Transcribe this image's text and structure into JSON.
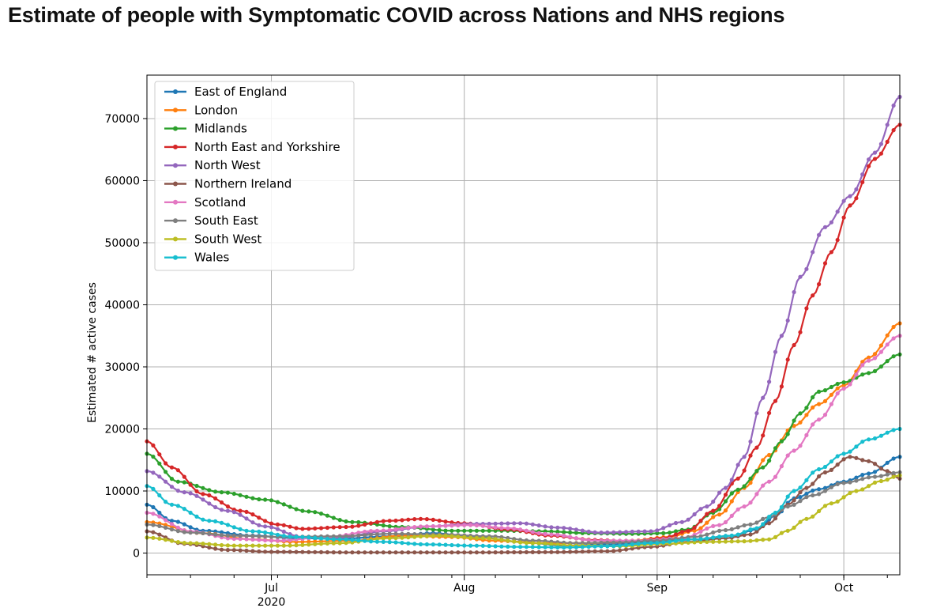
{
  "title": "Estimate of people with Symptomatic COVID across Nations and NHS regions",
  "chart_data": {
    "type": "line",
    "title": "Estimate of people with Symptomatic COVID across Nations and NHS regions",
    "xlabel": "",
    "ylabel": "Estimated # active cases",
    "x_start": "2020-06-11",
    "x_end": "2020-10-10",
    "xlim": [
      "2020-06-11",
      "2020-10-10"
    ],
    "ylim": [
      -3500,
      77000
    ],
    "x_ticks": [
      {
        "date": "2020-07-01",
        "label": "Jul",
        "sublabel": "2020"
      },
      {
        "date": "2020-08-01",
        "label": "Aug",
        "sublabel": ""
      },
      {
        "date": "2020-09-01",
        "label": "Sep",
        "sublabel": ""
      },
      {
        "date": "2020-10-01",
        "label": "Oct",
        "sublabel": ""
      }
    ],
    "y_ticks": [
      0,
      10000,
      20000,
      30000,
      40000,
      50000,
      60000,
      70000
    ],
    "grid": true,
    "legend_position": "top-left",
    "series": [
      {
        "name": "East of England",
        "color": "#1f77b4",
        "points": [
          [
            "2020-06-11",
            7800
          ],
          [
            "2020-06-15",
            5200
          ],
          [
            "2020-06-20",
            3600
          ],
          [
            "2020-06-28",
            2800
          ],
          [
            "2020-07-05",
            2400
          ],
          [
            "2020-07-12",
            2300
          ],
          [
            "2020-07-20",
            2700
          ],
          [
            "2020-07-27",
            3200
          ],
          [
            "2020-08-03",
            2600
          ],
          [
            "2020-08-10",
            1800
          ],
          [
            "2020-08-17",
            1200
          ],
          [
            "2020-08-24",
            1400
          ],
          [
            "2020-08-31",
            1800
          ],
          [
            "2020-09-07",
            2200
          ],
          [
            "2020-09-13",
            2800
          ],
          [
            "2020-09-17",
            3800
          ],
          [
            "2020-09-20",
            6000
          ],
          [
            "2020-09-23",
            8800
          ],
          [
            "2020-09-27",
            10300
          ],
          [
            "2020-10-01",
            11500
          ],
          [
            "2020-10-05",
            12800
          ],
          [
            "2020-10-10",
            15500
          ]
        ]
      },
      {
        "name": "London",
        "color": "#ff7f0e",
        "points": [
          [
            "2020-06-11",
            5000
          ],
          [
            "2020-06-20",
            3200
          ],
          [
            "2020-06-28",
            2200
          ],
          [
            "2020-07-05",
            1800
          ],
          [
            "2020-07-14",
            2000
          ],
          [
            "2020-07-22",
            2800
          ],
          [
            "2020-07-30",
            2600
          ],
          [
            "2020-08-06",
            2000
          ],
          [
            "2020-08-14",
            1600
          ],
          [
            "2020-08-21",
            1600
          ],
          [
            "2020-08-28",
            2000
          ],
          [
            "2020-09-03",
            2600
          ],
          [
            "2020-09-07",
            3600
          ],
          [
            "2020-09-11",
            6200
          ],
          [
            "2020-09-15",
            10500
          ],
          [
            "2020-09-19",
            15800
          ],
          [
            "2020-09-23",
            20500
          ],
          [
            "2020-09-27",
            24000
          ],
          [
            "2020-10-01",
            27000
          ],
          [
            "2020-10-05",
            31500
          ],
          [
            "2020-10-10",
            37000
          ]
        ]
      },
      {
        "name": "Midlands",
        "color": "#2ca02c",
        "points": [
          [
            "2020-06-11",
            16000
          ],
          [
            "2020-06-16",
            11500
          ],
          [
            "2020-06-23",
            9800
          ],
          [
            "2020-06-30",
            8600
          ],
          [
            "2020-07-07",
            6700
          ],
          [
            "2020-07-14",
            5000
          ],
          [
            "2020-07-22",
            4200
          ],
          [
            "2020-07-30",
            3600
          ],
          [
            "2020-08-07",
            3600
          ],
          [
            "2020-08-14",
            3500
          ],
          [
            "2020-08-21",
            3200
          ],
          [
            "2020-08-28",
            3100
          ],
          [
            "2020-09-02",
            3200
          ],
          [
            "2020-09-06",
            3800
          ],
          [
            "2020-09-10",
            6500
          ],
          [
            "2020-09-14",
            10200
          ],
          [
            "2020-09-18",
            13800
          ],
          [
            "2020-09-21",
            18000
          ],
          [
            "2020-09-24",
            22500
          ],
          [
            "2020-09-27",
            26000
          ],
          [
            "2020-10-01",
            27500
          ],
          [
            "2020-10-05",
            29000
          ],
          [
            "2020-10-10",
            32000
          ]
        ]
      },
      {
        "name": "North East and Yorkshire",
        "color": "#d62728",
        "points": [
          [
            "2020-06-11",
            18000
          ],
          [
            "2020-06-15",
            13800
          ],
          [
            "2020-06-20",
            9500
          ],
          [
            "2020-06-26",
            6800
          ],
          [
            "2020-07-02",
            4600
          ],
          [
            "2020-07-06",
            3900
          ],
          [
            "2020-07-13",
            4200
          ],
          [
            "2020-07-20",
            5200
          ],
          [
            "2020-07-25",
            5500
          ],
          [
            "2020-08-01",
            4800
          ],
          [
            "2020-08-08",
            3800
          ],
          [
            "2020-08-15",
            2800
          ],
          [
            "2020-08-22",
            2100
          ],
          [
            "2020-08-28",
            1900
          ],
          [
            "2020-09-02",
            2400
          ],
          [
            "2020-09-06",
            3600
          ],
          [
            "2020-09-10",
            6800
          ],
          [
            "2020-09-14",
            12000
          ],
          [
            "2020-09-17",
            17000
          ],
          [
            "2020-09-20",
            24500
          ],
          [
            "2020-09-23",
            33500
          ],
          [
            "2020-09-26",
            41500
          ],
          [
            "2020-09-29",
            48500
          ],
          [
            "2020-10-02",
            56000
          ],
          [
            "2020-10-06",
            63500
          ],
          [
            "2020-10-10",
            69000
          ]
        ]
      },
      {
        "name": "North West",
        "color": "#9467bd",
        "points": [
          [
            "2020-06-11",
            13200
          ],
          [
            "2020-06-17",
            9800
          ],
          [
            "2020-06-24",
            6800
          ],
          [
            "2020-06-30",
            4300
          ],
          [
            "2020-07-06",
            2600
          ],
          [
            "2020-07-12",
            2500
          ],
          [
            "2020-07-19",
            3500
          ],
          [
            "2020-07-26",
            4300
          ],
          [
            "2020-08-03",
            4700
          ],
          [
            "2020-08-10",
            4800
          ],
          [
            "2020-08-16",
            4100
          ],
          [
            "2020-08-23",
            3300
          ],
          [
            "2020-08-31",
            3500
          ],
          [
            "2020-09-05",
            5000
          ],
          [
            "2020-09-09",
            7500
          ],
          [
            "2020-09-12",
            10500
          ],
          [
            "2020-09-15",
            15500
          ],
          [
            "2020-09-18",
            25000
          ],
          [
            "2020-09-21",
            35000
          ],
          [
            "2020-09-24",
            44500
          ],
          [
            "2020-09-28",
            52500
          ],
          [
            "2020-10-02",
            57500
          ],
          [
            "2020-10-06",
            64500
          ],
          [
            "2020-10-10",
            73500
          ]
        ]
      },
      {
        "name": "Northern Ireland",
        "color": "#8c564b",
        "points": [
          [
            "2020-06-11",
            3500
          ],
          [
            "2020-06-17",
            1500
          ],
          [
            "2020-06-24",
            500
          ],
          [
            "2020-07-01",
            200
          ],
          [
            "2020-07-15",
            100
          ],
          [
            "2020-08-01",
            100
          ],
          [
            "2020-08-15",
            150
          ],
          [
            "2020-08-24",
            300
          ],
          [
            "2020-08-31",
            1000
          ],
          [
            "2020-09-06",
            1800
          ],
          [
            "2020-09-12",
            2400
          ],
          [
            "2020-09-16",
            3000
          ],
          [
            "2020-09-19",
            4800
          ],
          [
            "2020-09-22",
            7800
          ],
          [
            "2020-09-25",
            10500
          ],
          [
            "2020-09-28",
            13000
          ],
          [
            "2020-10-02",
            15500
          ],
          [
            "2020-10-05",
            14800
          ],
          [
            "2020-10-08",
            13200
          ],
          [
            "2020-10-10",
            12000
          ]
        ]
      },
      {
        "name": "Scotland",
        "color": "#e377c2",
        "points": [
          [
            "2020-06-11",
            6500
          ],
          [
            "2020-06-18",
            3500
          ],
          [
            "2020-06-25",
            2300
          ],
          [
            "2020-07-02",
            2000
          ],
          [
            "2020-07-10",
            2600
          ],
          [
            "2020-07-18",
            3600
          ],
          [
            "2020-07-26",
            4300
          ],
          [
            "2020-08-02",
            4500
          ],
          [
            "2020-08-08",
            4000
          ],
          [
            "2020-08-15",
            3000
          ],
          [
            "2020-08-22",
            2000
          ],
          [
            "2020-08-29",
            2000
          ],
          [
            "2020-09-05",
            2400
          ],
          [
            "2020-09-11",
            4500
          ],
          [
            "2020-09-15",
            7500
          ],
          [
            "2020-09-19",
            11500
          ],
          [
            "2020-09-23",
            16500
          ],
          [
            "2020-09-27",
            21500
          ],
          [
            "2020-10-01",
            26500
          ],
          [
            "2020-10-05",
            31000
          ],
          [
            "2020-10-10",
            35000
          ]
        ]
      },
      {
        "name": "South East",
        "color": "#7f7f7f",
        "points": [
          [
            "2020-06-11",
            4600
          ],
          [
            "2020-06-18",
            3300
          ],
          [
            "2020-06-25",
            2800
          ],
          [
            "2020-07-03",
            2600
          ],
          [
            "2020-07-12",
            2700
          ],
          [
            "2020-07-20",
            3100
          ],
          [
            "2020-07-28",
            3000
          ],
          [
            "2020-08-05",
            2700
          ],
          [
            "2020-08-12",
            2000
          ],
          [
            "2020-08-19",
            1600
          ],
          [
            "2020-08-26",
            1700
          ],
          [
            "2020-09-01",
            2000
          ],
          [
            "2020-09-07",
            2600
          ],
          [
            "2020-09-12",
            3700
          ],
          [
            "2020-09-16",
            4600
          ],
          [
            "2020-09-19",
            5800
          ],
          [
            "2020-09-22",
            7500
          ],
          [
            "2020-09-26",
            9300
          ],
          [
            "2020-10-01",
            11300
          ],
          [
            "2020-10-06",
            12300
          ],
          [
            "2020-10-10",
            13000
          ]
        ]
      },
      {
        "name": "South West",
        "color": "#bcbd22",
        "points": [
          [
            "2020-06-11",
            2500
          ],
          [
            "2020-06-18",
            1600
          ],
          [
            "2020-06-25",
            1200
          ],
          [
            "2020-07-03",
            1200
          ],
          [
            "2020-07-12",
            1600
          ],
          [
            "2020-07-20",
            2400
          ],
          [
            "2020-07-28",
            2800
          ],
          [
            "2020-08-04",
            2400
          ],
          [
            "2020-08-12",
            1600
          ],
          [
            "2020-08-19",
            1200
          ],
          [
            "2020-08-26",
            1100
          ],
          [
            "2020-09-02",
            1500
          ],
          [
            "2020-09-09",
            1800
          ],
          [
            "2020-09-15",
            1900
          ],
          [
            "2020-09-19",
            2200
          ],
          [
            "2020-09-22",
            3600
          ],
          [
            "2020-09-25",
            5500
          ],
          [
            "2020-09-29",
            8000
          ],
          [
            "2020-10-03",
            10000
          ],
          [
            "2020-10-07",
            11600
          ],
          [
            "2020-10-10",
            12500
          ]
        ]
      },
      {
        "name": "Wales",
        "color": "#17becf",
        "points": [
          [
            "2020-06-11",
            10800
          ],
          [
            "2020-06-15",
            7800
          ],
          [
            "2020-06-21",
            5200
          ],
          [
            "2020-06-28",
            3500
          ],
          [
            "2020-07-05",
            2600
          ],
          [
            "2020-07-12",
            2200
          ],
          [
            "2020-07-19",
            1800
          ],
          [
            "2020-07-26",
            1400
          ],
          [
            "2020-08-02",
            1200
          ],
          [
            "2020-08-10",
            1000
          ],
          [
            "2020-08-17",
            900
          ],
          [
            "2020-08-24",
            1100
          ],
          [
            "2020-08-31",
            1600
          ],
          [
            "2020-09-07",
            2200
          ],
          [
            "2020-09-13",
            2800
          ],
          [
            "2020-09-17",
            4000
          ],
          [
            "2020-09-20",
            6500
          ],
          [
            "2020-09-23",
            10000
          ],
          [
            "2020-09-27",
            13500
          ],
          [
            "2020-10-01",
            16000
          ],
          [
            "2020-10-05",
            18300
          ],
          [
            "2020-10-10",
            20000
          ]
        ]
      }
    ]
  }
}
